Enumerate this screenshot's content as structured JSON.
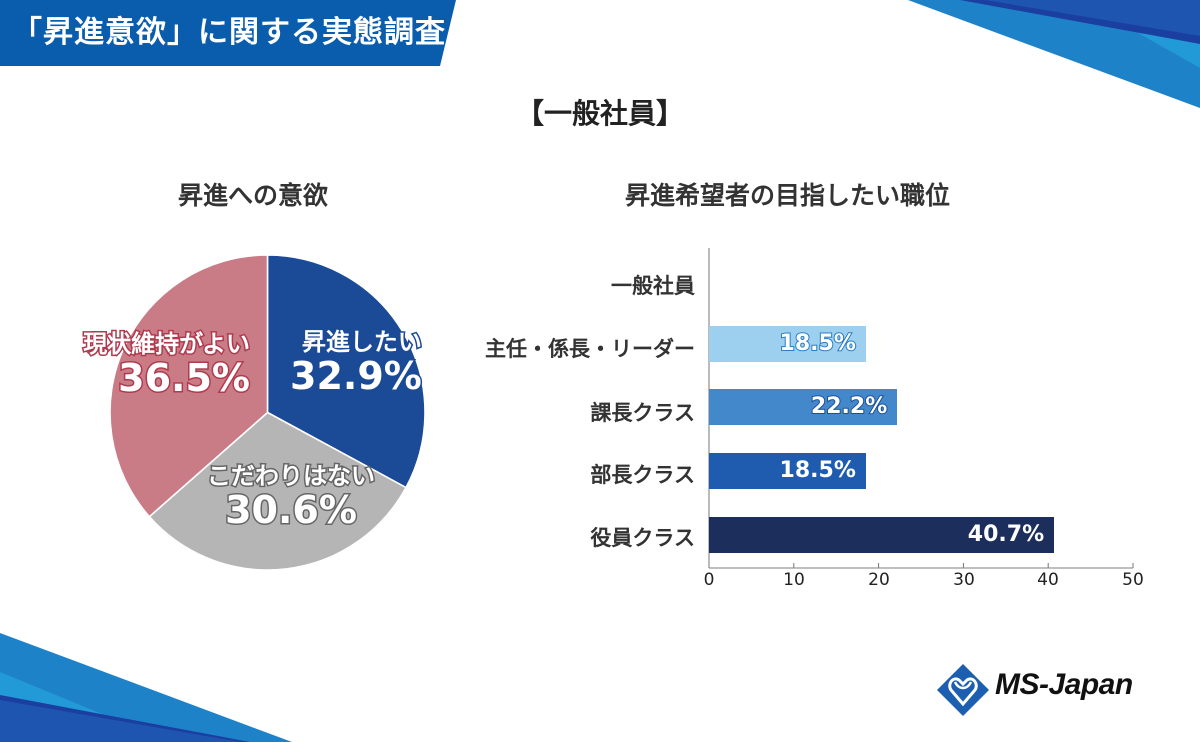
{
  "header": {
    "title": "「昇進意欲」に関する実態調査",
    "subtitle": "【一般社員】"
  },
  "colors": {
    "banner": "#0a5cad",
    "pie_blue": "#1b4a96",
    "pie_gray": "#b5b5b5",
    "pie_pink": "#c97b86",
    "bar_1": "#9dd0ee",
    "bar_2": "#4488cc",
    "bar_3": "#1f5cb0",
    "bar_4": "#1c2f5c"
  },
  "pie": {
    "title": "昇進への意欲",
    "slices": [
      {
        "label": "昇進したい",
        "value": "32.9%"
      },
      {
        "label": "こだわりはない",
        "value": "30.6%"
      },
      {
        "label": "現状維持がよい",
        "value": "36.5%"
      }
    ]
  },
  "bar": {
    "title": "昇進希望者の目指したい職位",
    "categories": [
      "一般社員",
      "主任・係長・リーダー",
      "課長クラス",
      "部長クラス",
      "役員クラス"
    ],
    "value_labels": [
      "",
      "18.5%",
      "22.2%",
      "18.5%",
      "40.7%"
    ],
    "ticks": [
      "0",
      "10",
      "20",
      "30",
      "40",
      "50"
    ]
  },
  "logo": {
    "text": "MS-Japan"
  },
  "chart_data": [
    {
      "type": "pie",
      "title": "昇進への意欲",
      "categories": [
        "昇進したい",
        "こだわりはない",
        "現状維持がよい"
      ],
      "values": [
        32.9,
        30.6,
        36.5
      ],
      "colors": [
        "#1b4a96",
        "#b5b5b5",
        "#c97b86"
      ],
      "unit": "%"
    },
    {
      "type": "bar",
      "orientation": "horizontal",
      "title": "昇進希望者の目指したい職位",
      "categories": [
        "一般社員",
        "主任・係長・リーダー",
        "課長クラス",
        "部長クラス",
        "役員クラス"
      ],
      "values": [
        0,
        18.5,
        22.2,
        18.5,
        40.7
      ],
      "xlim": [
        0,
        50
      ],
      "xticks": [
        0,
        10,
        20,
        30,
        40,
        50
      ],
      "xlabel": "",
      "ylabel": "",
      "grid": false,
      "unit": "%"
    }
  ]
}
